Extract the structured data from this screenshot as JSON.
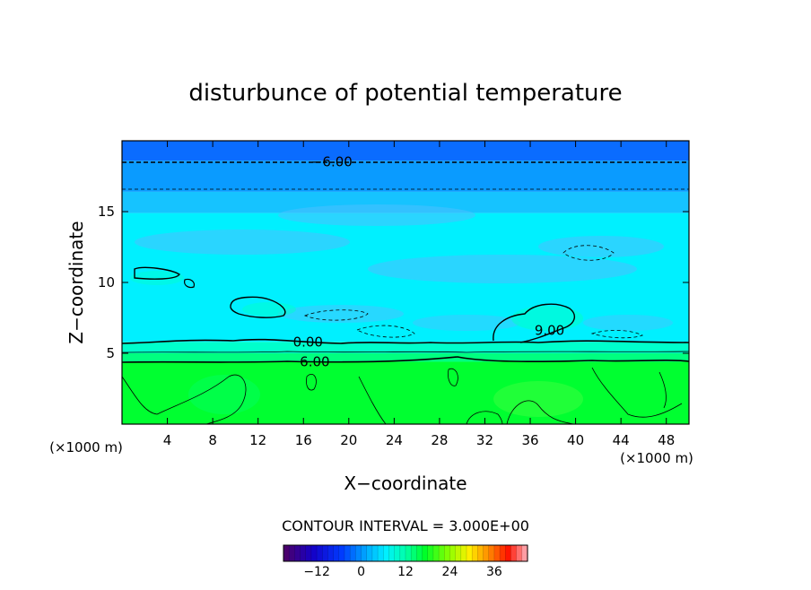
{
  "chart_data": {
    "type": "heatmap",
    "title": "disturbunce of potential temperature",
    "xlabel": "X−coordinate",
    "ylabel": "Z−coordinate",
    "x_unit_left": "(×1000 m)",
    "x_unit_right": "(×1000 m)",
    "xlim": [
      0,
      50
    ],
    "ylim": [
      0,
      20
    ],
    "x_ticks": [
      4,
      8,
      12,
      16,
      20,
      24,
      28,
      32,
      36,
      40,
      44,
      48
    ],
    "x_tick_labels": [
      "4",
      "8",
      "12",
      "16",
      "20",
      "24",
      "28",
      "32",
      "36",
      "40",
      "44",
      "48"
    ],
    "y_ticks": [
      5,
      10,
      15
    ],
    "y_tick_labels": [
      "5",
      "10",
      "15"
    ],
    "contour_interval_text": "CONTOUR INTERVAL = 3.000E+00",
    "contour_labels": [
      {
        "text": "−6.00",
        "x": 18.5,
        "z": 18.5
      },
      {
        "text": "0.00",
        "x": 16.4,
        "z": 5.8
      },
      {
        "text": "6.00",
        "x": 17.0,
        "z": 4.4
      },
      {
        "text": "9.00",
        "x": 37.7,
        "z": 6.6
      }
    ],
    "bands": [
      {
        "z0": 18.6,
        "z1": 20.0,
        "color": "#0a6cff"
      },
      {
        "z0": 16.4,
        "z1": 18.6,
        "color": "#0a9bff"
      },
      {
        "z0": 14.9,
        "z1": 16.4,
        "color": "#16c3ff"
      },
      {
        "z0": 5.8,
        "z1": 14.9,
        "color": "#00f0ff"
      },
      {
        "z0": 5.0,
        "z1": 5.8,
        "color": "#00ffcc"
      },
      {
        "z0": 4.4,
        "z1": 5.0,
        "color": "#00ff80"
      },
      {
        "z0": 0.0,
        "z1": 4.4,
        "color": "#00ff30"
      }
    ],
    "colorbar": {
      "min": -21,
      "max": 45,
      "tick_values": [
        -12,
        0,
        12,
        24,
        36
      ],
      "tick_labels": [
        "−12",
        "0",
        "12",
        "24",
        "36"
      ]
    }
  }
}
